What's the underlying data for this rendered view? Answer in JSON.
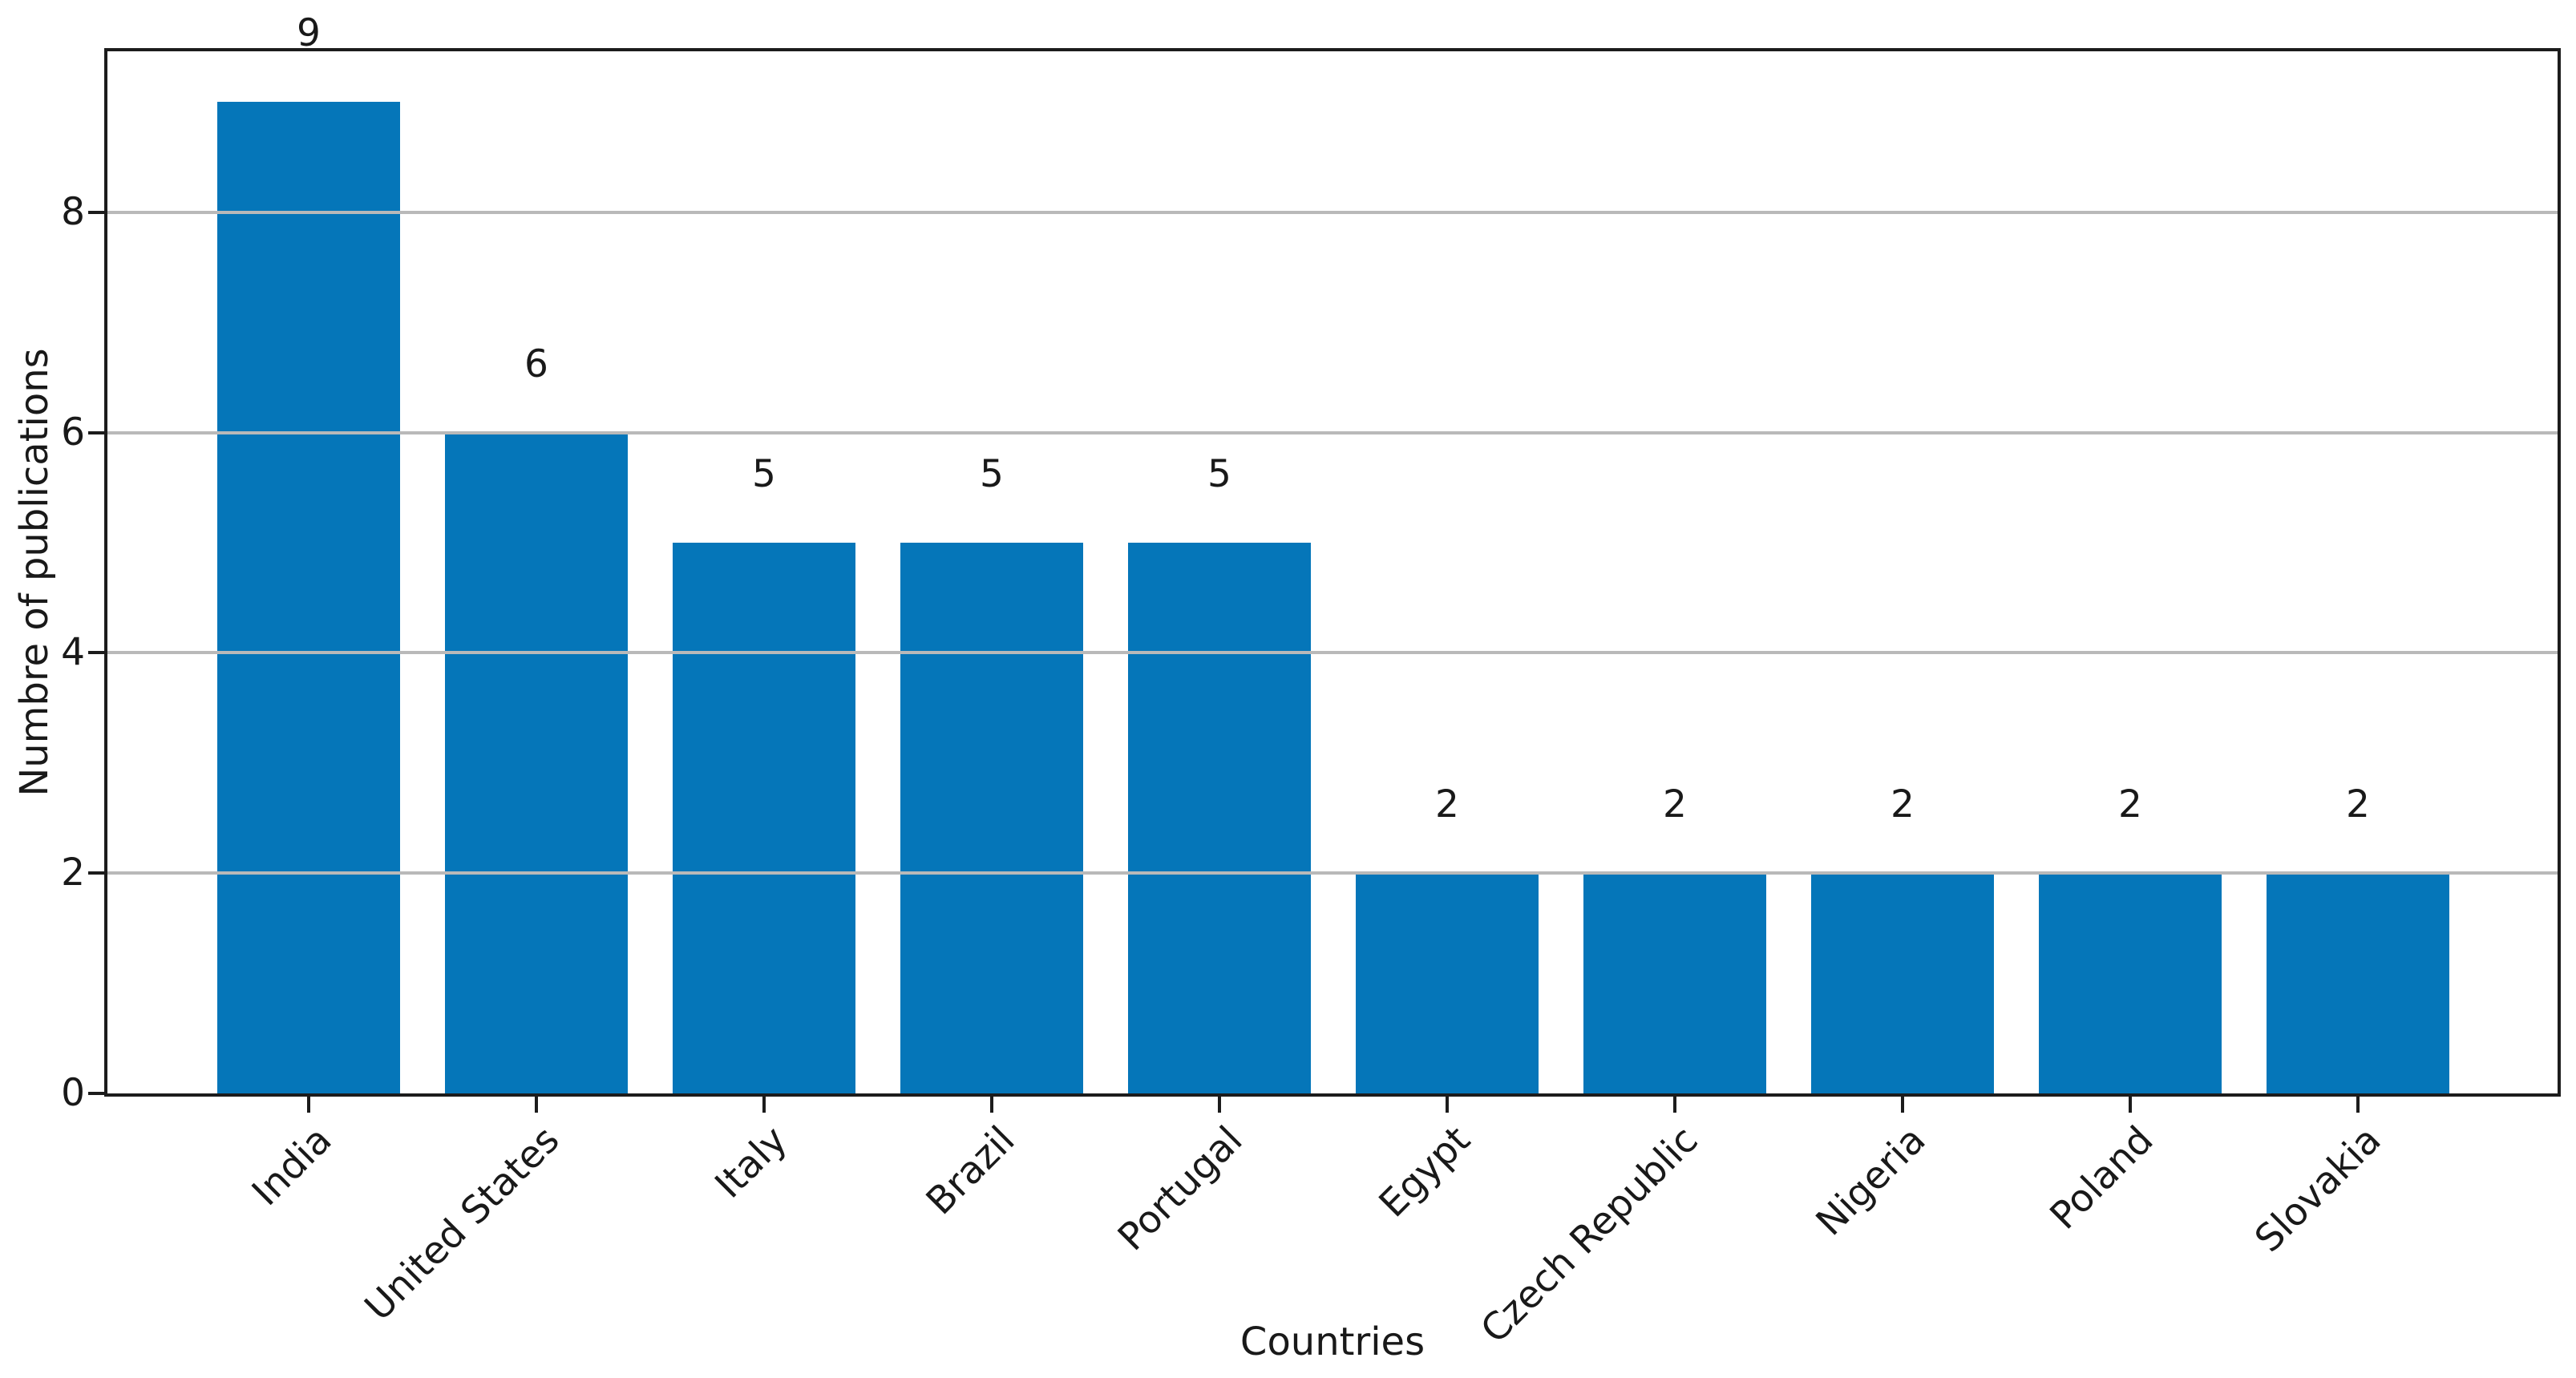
{
  "chart_data": {
    "type": "bar",
    "title": "",
    "xlabel": "Countries",
    "ylabel": "Numbre of publications",
    "categories": [
      "India",
      "United States",
      "Italy",
      "Brazil",
      "Portugal",
      "Egypt",
      "Czech Republic",
      "Nigeria",
      "Poland",
      "Slovakia"
    ],
    "values": [
      9,
      6,
      5,
      5,
      5,
      2,
      2,
      2,
      2,
      2
    ],
    "bar_value_labels": [
      "9",
      "6",
      "5",
      "5",
      "5",
      "2",
      "2",
      "2",
      "2",
      "2"
    ],
    "yticks": [
      0,
      2,
      4,
      6,
      8
    ],
    "ylim": [
      0,
      9.47
    ],
    "grid": "horizontal-on-top",
    "legend_position": "none",
    "x_tick_rotation_deg": 45,
    "colors": {
      "bar": "#0576b9",
      "gridline": "#b9b9b9",
      "spine": "#1c1c1c",
      "text": "#191919",
      "background": "#ffffff"
    }
  }
}
